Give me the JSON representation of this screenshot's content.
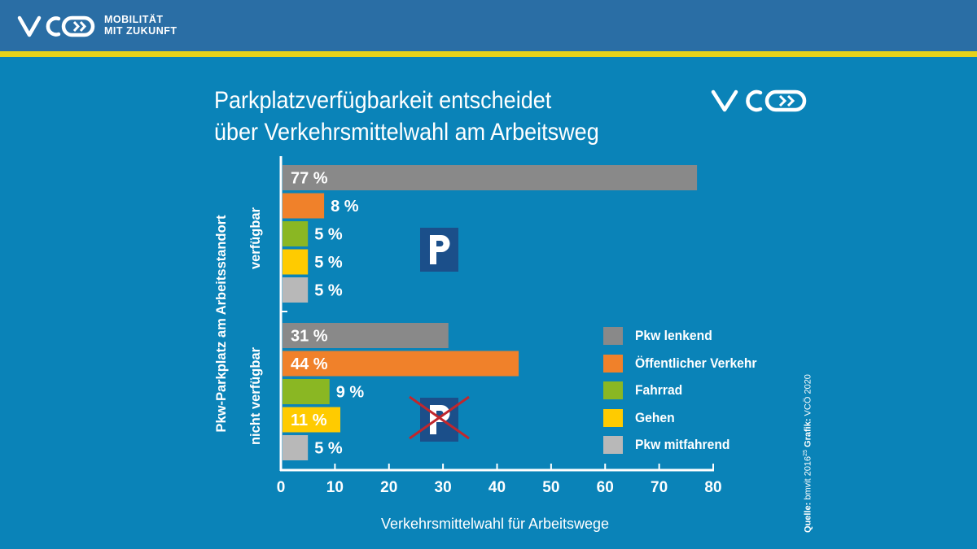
{
  "header": {
    "brand_tagline_1": "MOBILITÄT",
    "brand_tagline_2": "MIT ZUKUNFT"
  },
  "title_line_1": "Parkplatzverfügbarkeit entscheidet",
  "title_line_2": "über Verkehrsmittelwahl am Arbeitsweg",
  "source": {
    "label": "Quelle:",
    "text": "bmvit 2016",
    "sup": "25",
    "grafik_label": "Grafik:",
    "grafik_text": "VCÖ 2020"
  },
  "colors": {
    "Pkw lenkend": "#898989",
    "Öffentlicher Verkehr": "#f0812a",
    "Fahrrad": "#8ab723",
    "Gehen": "#ffcb00",
    "Pkw mitfahrend": "#b8b8b8",
    "background": "#0a83b8",
    "header": "#2a6ea5",
    "stripe": "#e6d21b",
    "parking_sign": "#1b4f8a",
    "cross": "#c0272d"
  },
  "chart_data": {
    "type": "bar",
    "orientation": "horizontal",
    "y_axis_title": "Pkw-Parkplatz am Arbeitsstandort",
    "xlabel": "Verkehrsmittelwahl für Arbeitswege",
    "xlim": [
      0,
      80
    ],
    "xticks": [
      "0",
      "10",
      "20",
      "30",
      "40",
      "50",
      "60",
      "70",
      "80"
    ],
    "grid": false,
    "legend_position": "bottom-right",
    "groups": [
      {
        "label": "verfügbar",
        "icon": "parking-sign",
        "crossed": false,
        "bars": [
          {
            "category": "Pkw lenkend",
            "value": 77,
            "label": "77 %"
          },
          {
            "category": "Öffentlicher Verkehr",
            "value": 8,
            "label": "8 %"
          },
          {
            "category": "Fahrrad",
            "value": 5,
            "label": "5 %"
          },
          {
            "category": "Gehen",
            "value": 5,
            "label": "5 %"
          },
          {
            "category": "Pkw mitfahrend",
            "value": 5,
            "label": "5 %"
          }
        ]
      },
      {
        "label": "nicht verfügbar",
        "icon": "parking-sign",
        "crossed": true,
        "bars": [
          {
            "category": "Pkw lenkend",
            "value": 31,
            "label": "31 %"
          },
          {
            "category": "Öffentlicher Verkehr",
            "value": 44,
            "label": "44 %"
          },
          {
            "category": "Fahrrad",
            "value": 9,
            "label": "9 %"
          },
          {
            "category": "Gehen",
            "value": 11,
            "label": "11 %"
          },
          {
            "category": "Pkw mitfahrend",
            "value": 5,
            "label": "5 %"
          }
        ]
      }
    ],
    "legend": [
      "Pkw lenkend",
      "Öffentlicher Verkehr",
      "Fahrrad",
      "Gehen",
      "Pkw mitfahrend"
    ]
  }
}
